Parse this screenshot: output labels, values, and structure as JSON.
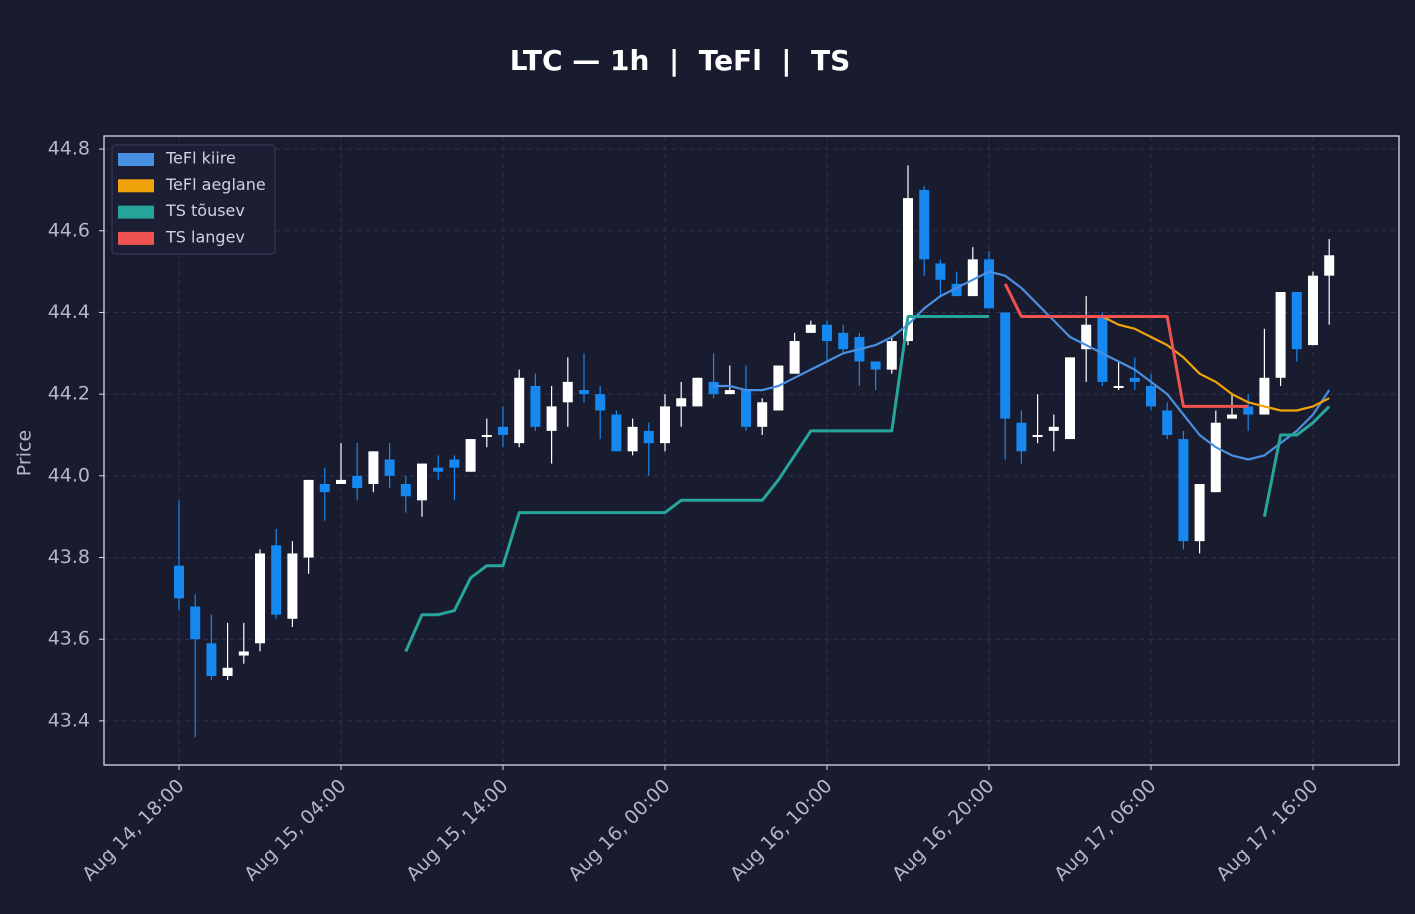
{
  "chart_data": {
    "type": "candlestick",
    "title": "LTC — 1h  |  TeFl  |  TS",
    "ylabel": "Price",
    "ylim": [
      43.292,
      44.832
    ],
    "yticks": [
      43.4,
      43.6,
      43.8,
      {
        "value": 44,
        "label": "44.0"
      },
      44.2,
      44.4,
      44.6,
      44.8
    ],
    "grid": true,
    "legend": "upper left",
    "up_color": "#ffffff",
    "down_color": "#1688f0",
    "categories": [
      "Aug 14, 18:00",
      null,
      null,
      null,
      null,
      null,
      null,
      null,
      null,
      null,
      "Aug 15, 04:00",
      null,
      null,
      null,
      null,
      null,
      null,
      null,
      null,
      null,
      "Aug 15, 14:00",
      null,
      null,
      null,
      null,
      null,
      null,
      null,
      null,
      null,
      "Aug 16, 00:00",
      null,
      null,
      null,
      null,
      null,
      null,
      null,
      null,
      null,
      "Aug 16, 10:00",
      null,
      null,
      null,
      null,
      null,
      null,
      null,
      null,
      null,
      "Aug 16, 20:00",
      null,
      null,
      null,
      null,
      null,
      null,
      null,
      null,
      null,
      "Aug 17, 06:00",
      null,
      null,
      null,
      null,
      null,
      null,
      null,
      null,
      null,
      "Aug 17, 16:00",
      null
    ],
    "open": [
      43.78,
      43.68,
      43.59,
      43.51,
      43.56,
      43.59,
      43.83,
      43.65,
      43.8,
      43.98,
      43.98,
      44.0,
      43.98,
      44.04,
      43.98,
      43.94,
      44.02,
      44.04,
      44.01,
      44.1,
      44.12,
      44.08,
      44.22,
      44.11,
      44.18,
      44.21,
      44.2,
      44.15,
      44.06,
      44.11,
      44.08,
      44.17,
      44.17,
      44.23,
      44.2,
      44.21,
      44.12,
      44.16,
      44.25,
      44.35,
      44.37,
      44.35,
      44.34,
      44.28,
      44.26,
      44.33,
      44.7,
      44.52,
      44.47,
      44.44,
      44.53,
      44.4,
      44.13,
      44.1,
      44.11,
      44.09,
      44.31,
      44.39,
      44.22,
      44.24,
      44.22,
      44.16,
      44.09,
      43.84,
      43.96,
      44.14,
      44.17,
      44.15,
      44.24,
      44.45,
      44.32,
      44.49
    ],
    "high": [
      43.94,
      43.71,
      43.66,
      43.64,
      43.64,
      43.82,
      43.87,
      43.84,
      43.99,
      44.02,
      44.08,
      44.08,
      44.06,
      44.08,
      44.0,
      44.03,
      44.05,
      44.05,
      44.09,
      44.14,
      44.17,
      44.26,
      44.25,
      44.22,
      44.29,
      44.3,
      44.22,
      44.16,
      44.14,
      44.13,
      44.2,
      44.23,
      44.24,
      44.3,
      44.27,
      44.27,
      44.19,
      44.27,
      44.35,
      44.38,
      44.38,
      44.37,
      44.35,
      44.28,
      44.34,
      44.76,
      44.71,
      44.53,
      44.5,
      44.56,
      44.55,
      44.4,
      44.16,
      44.2,
      44.15,
      44.29,
      44.44,
      44.4,
      44.28,
      44.29,
      44.25,
      44.18,
      44.11,
      43.98,
      44.16,
      44.2,
      44.2,
      44.36,
      44.45,
      44.45,
      44.5,
      44.58
    ],
    "low": [
      43.67,
      43.36,
      43.5,
      43.5,
      43.54,
      43.57,
      43.65,
      43.63,
      43.76,
      43.89,
      43.98,
      43.94,
      43.96,
      43.97,
      43.91,
      43.9,
      43.99,
      43.94,
      44.01,
      44.07,
      44.07,
      44.07,
      44.11,
      44.03,
      44.12,
      44.18,
      44.09,
      44.06,
      44.05,
      44.0,
      44.06,
      44.12,
      44.17,
      44.19,
      44.2,
      44.11,
      44.1,
      44.16,
      44.25,
      44.35,
      44.28,
      44.3,
      44.22,
      44.21,
      44.25,
      44.32,
      44.49,
      44.44,
      44.44,
      44.44,
      44.41,
      44.04,
      44.03,
      44.08,
      44.06,
      44.09,
      44.23,
      44.22,
      44.21,
      44.21,
      44.16,
      44.09,
      43.82,
      43.81,
      43.96,
      44.14,
      44.11,
      44.15,
      44.22,
      44.28,
      44.32,
      44.37
    ],
    "close": [
      43.7,
      43.6,
      43.51,
      43.53,
      43.57,
      43.81,
      43.66,
      43.81,
      43.99,
      43.96,
      43.99,
      43.97,
      44.06,
      44.0,
      43.95,
      44.03,
      44.01,
      44.02,
      44.09,
      44.1,
      44.1,
      44.24,
      44.12,
      44.17,
      44.23,
      44.2,
      44.16,
      44.06,
      44.12,
      44.08,
      44.17,
      44.19,
      44.24,
      44.2,
      44.21,
      44.12,
      44.18,
      44.27,
      44.33,
      44.37,
      44.33,
      44.31,
      44.28,
      44.26,
      44.33,
      44.68,
      44.53,
      44.48,
      44.44,
      44.53,
      44.41,
      44.14,
      44.06,
      44.1,
      44.12,
      44.29,
      44.37,
      44.23,
      44.22,
      44.23,
      44.17,
      44.1,
      43.84,
      43.98,
      44.13,
      44.15,
      44.15,
      44.24,
      44.45,
      44.31,
      44.49,
      44.54
    ],
    "series": [
      {
        "name": "TeFl kiire",
        "color": "#4a90e2",
        "values": [
          null,
          null,
          null,
          null,
          null,
          null,
          null,
          null,
          null,
          null,
          null,
          null,
          null,
          null,
          null,
          null,
          null,
          null,
          null,
          null,
          null,
          null,
          null,
          null,
          null,
          null,
          null,
          null,
          null,
          null,
          null,
          null,
          null,
          44.22,
          44.22,
          44.21,
          44.21,
          44.22,
          44.24,
          44.26,
          44.28,
          44.3,
          44.31,
          44.32,
          44.34,
          44.37,
          44.41,
          44.44,
          44.46,
          44.48,
          44.5,
          44.49,
          44.46,
          44.42,
          44.38,
          44.34,
          44.32,
          44.3,
          44.28,
          44.26,
          44.23,
          44.2,
          44.15,
          44.1,
          44.07,
          44.05,
          44.04,
          44.05,
          44.08,
          44.11,
          44.15,
          44.21
        ]
      },
      {
        "name": "TeFl aeglane",
        "color": "#f0a30a",
        "values": [
          null,
          null,
          null,
          null,
          null,
          null,
          null,
          null,
          null,
          null,
          null,
          null,
          null,
          null,
          null,
          null,
          null,
          null,
          null,
          null,
          null,
          null,
          null,
          null,
          null,
          null,
          null,
          null,
          null,
          null,
          null,
          null,
          null,
          null,
          null,
          null,
          null,
          null,
          null,
          null,
          null,
          null,
          null,
          null,
          null,
          null,
          null,
          null,
          null,
          null,
          null,
          null,
          null,
          null,
          null,
          null,
          null,
          44.39,
          44.37,
          44.36,
          44.34,
          44.32,
          44.29,
          44.25,
          44.23,
          44.2,
          44.18,
          44.17,
          44.16,
          44.16,
          44.17,
          44.19
        ]
      },
      {
        "name": "TS tõusev",
        "color": "#26a69a",
        "values": [
          null,
          null,
          null,
          null,
          null,
          null,
          null,
          null,
          null,
          null,
          null,
          null,
          null,
          null,
          43.57,
          43.66,
          43.66,
          43.67,
          43.75,
          43.78,
          43.78,
          43.91,
          43.91,
          43.91,
          43.91,
          43.91,
          43.91,
          43.91,
          43.91,
          43.91,
          43.91,
          43.94,
          43.94,
          43.94,
          43.94,
          43.94,
          43.94,
          43.99,
          44.05,
          44.11,
          44.11,
          44.11,
          44.11,
          44.11,
          44.11,
          44.39,
          44.39,
          44.39,
          44.39,
          44.39,
          44.39,
          null,
          null,
          null,
          null,
          null,
          null,
          null,
          null,
          null,
          null,
          null,
          null,
          null,
          null,
          null,
          null,
          43.9,
          44.1,
          44.1,
          44.13,
          44.17
        ]
      },
      {
        "name": "TS langev",
        "color": "#ef5350",
        "values": [
          null,
          null,
          null,
          null,
          null,
          null,
          null,
          null,
          null,
          null,
          null,
          null,
          null,
          null,
          null,
          null,
          null,
          null,
          null,
          null,
          null,
          null,
          null,
          null,
          null,
          null,
          null,
          null,
          null,
          null,
          null,
          null,
          null,
          null,
          null,
          null,
          null,
          null,
          null,
          null,
          null,
          null,
          null,
          null,
          null,
          null,
          null,
          null,
          null,
          null,
          null,
          44.47,
          44.39,
          44.39,
          44.39,
          44.39,
          44.39,
          44.39,
          44.39,
          44.39,
          44.39,
          44.39,
          44.17,
          44.17,
          44.17,
          44.17,
          44.17,
          null,
          null,
          null,
          null,
          null
        ]
      }
    ]
  }
}
